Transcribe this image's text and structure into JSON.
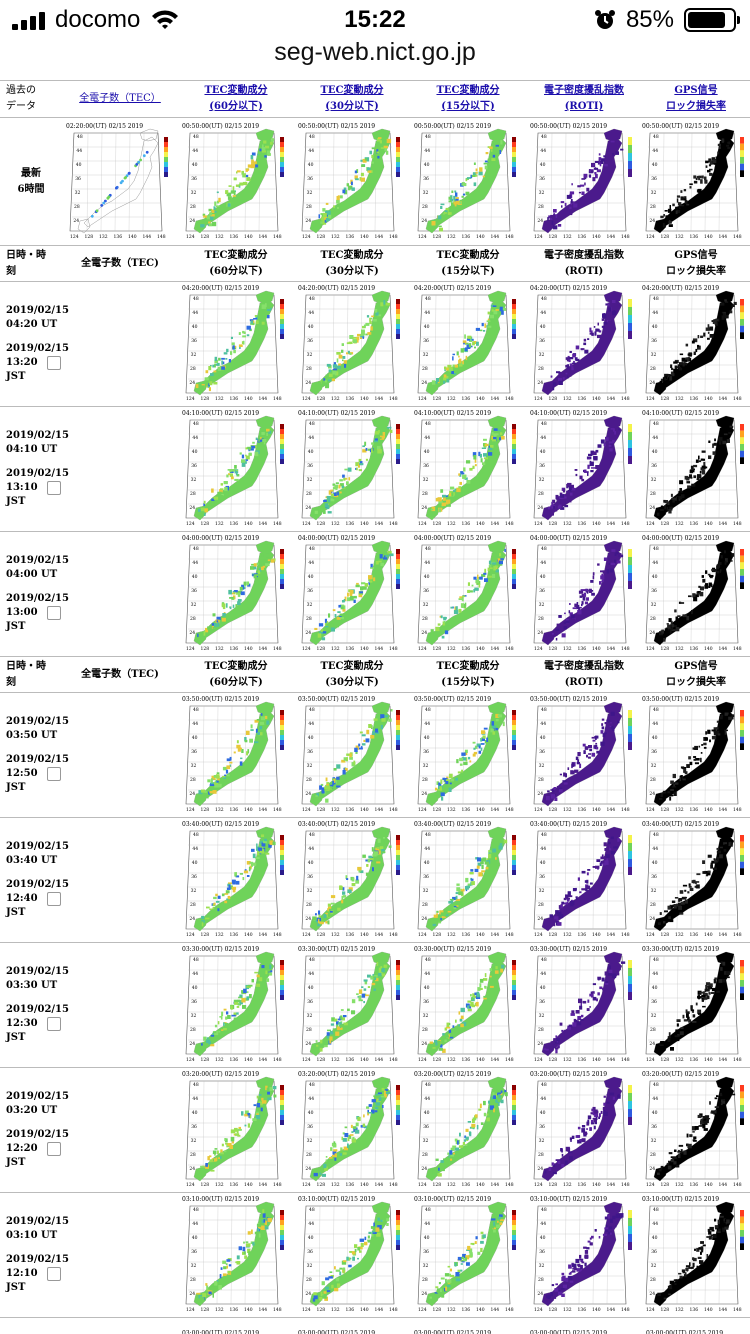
{
  "status_bar": {
    "carrier": "docomo",
    "time": "15:22",
    "battery": "85%",
    "battery_level": 0.85
  },
  "url": "seg-web.nict.go.jp",
  "header_links": {
    "past_data": [
      "過去の",
      "データ"
    ],
    "col_tec": "全電子数（TEC）",
    "col_60": [
      "TEC変動成分",
      "(60分以下)"
    ],
    "col_30": [
      "TEC変動成分",
      "(30分以下)"
    ],
    "col_15": [
      "TEC変動成分",
      "(15分以下)"
    ],
    "col_roti": [
      "電子密度擾乱指数",
      "(ROTI)"
    ],
    "col_gps": [
      "GPS信号",
      "ロック損失率"
    ]
  },
  "recent": {
    "label": [
      "最新",
      "6時間"
    ],
    "tec_time": "02:20:00(UT) 02/15 2019",
    "other_time": "00:50:00(UT) 02/15 2019"
  },
  "section_header": {
    "datetime": [
      "日時・時",
      "刻"
    ],
    "tec": "全電子数（TEC)",
    "col_60": [
      "TEC変動成分",
      "(60分以下)"
    ],
    "col_30": [
      "TEC変動成分",
      "(30分以下)"
    ],
    "col_15": [
      "TEC変動成分",
      "(15分以下)"
    ],
    "col_roti": [
      "電子密度擾乱指数",
      "(ROTI)"
    ],
    "col_gps": [
      "GPS信号",
      "ロック損失率"
    ]
  },
  "groups": [
    {
      "rows": [
        {
          "ut_date": "2019/02/15",
          "ut_time": "04:20 UT",
          "jst_date": "2019/02/15",
          "jst_time": "13:20",
          "jst": "JST",
          "stamp": "04:20:00(UT) 02/15 2019"
        },
        {
          "ut_date": "2019/02/15",
          "ut_time": "04:10 UT",
          "jst_date": "2019/02/15",
          "jst_time": "13:10",
          "jst": "JST",
          "stamp": "04:10:00(UT) 02/15 2019"
        },
        {
          "ut_date": "2019/02/15",
          "ut_time": "04:00 UT",
          "jst_date": "2019/02/15",
          "jst_time": "13:00",
          "jst": "JST",
          "stamp": "04:00:00(UT) 02/15 2019"
        }
      ]
    },
    {
      "rows": [
        {
          "ut_date": "2019/02/15",
          "ut_time": "03:50 UT",
          "jst_date": "2019/02/15",
          "jst_time": "12:50",
          "jst": "JST",
          "stamp": "03:50:00(UT) 02/15 2019"
        },
        {
          "ut_date": "2019/02/15",
          "ut_time": "03:40 UT",
          "jst_date": "2019/02/15",
          "jst_time": "12:40",
          "jst": "JST",
          "stamp": "03:40:00(UT) 02/15 2019"
        },
        {
          "ut_date": "2019/02/15",
          "ut_time": "03:30 UT",
          "jst_date": "2019/02/15",
          "jst_time": "12:30",
          "jst": "JST",
          "stamp": "03:30:00(UT) 02/15 2019"
        },
        {
          "ut_date": "2019/02/15",
          "ut_time": "03:20 UT",
          "jst_date": "2019/02/15",
          "jst_time": "12:20",
          "jst": "JST",
          "stamp": "03:20:00(UT) 02/15 2019"
        },
        {
          "ut_date": "2019/02/15",
          "ut_time": "03:10 UT",
          "jst_date": "2019/02/15",
          "jst_time": "12:10",
          "jst": "JST",
          "stamp": "03:10:00(UT) 02/15 2019"
        }
      ]
    }
  ],
  "trailing_stamp": "03:00:00(UT) 02/15 2019",
  "map_axis": {
    "lat_labels": [
      "48",
      "44",
      "40",
      "36",
      "32",
      "28",
      "24"
    ],
    "lon_labels": [
      "124",
      "128",
      "132",
      "136",
      "140",
      "144",
      "148"
    ]
  },
  "colors": {
    "link": "#1a0dab",
    "roti_bg": "#4b1a8c",
    "gps_bg": "#000000",
    "tec_green": "#6fd35a"
  }
}
